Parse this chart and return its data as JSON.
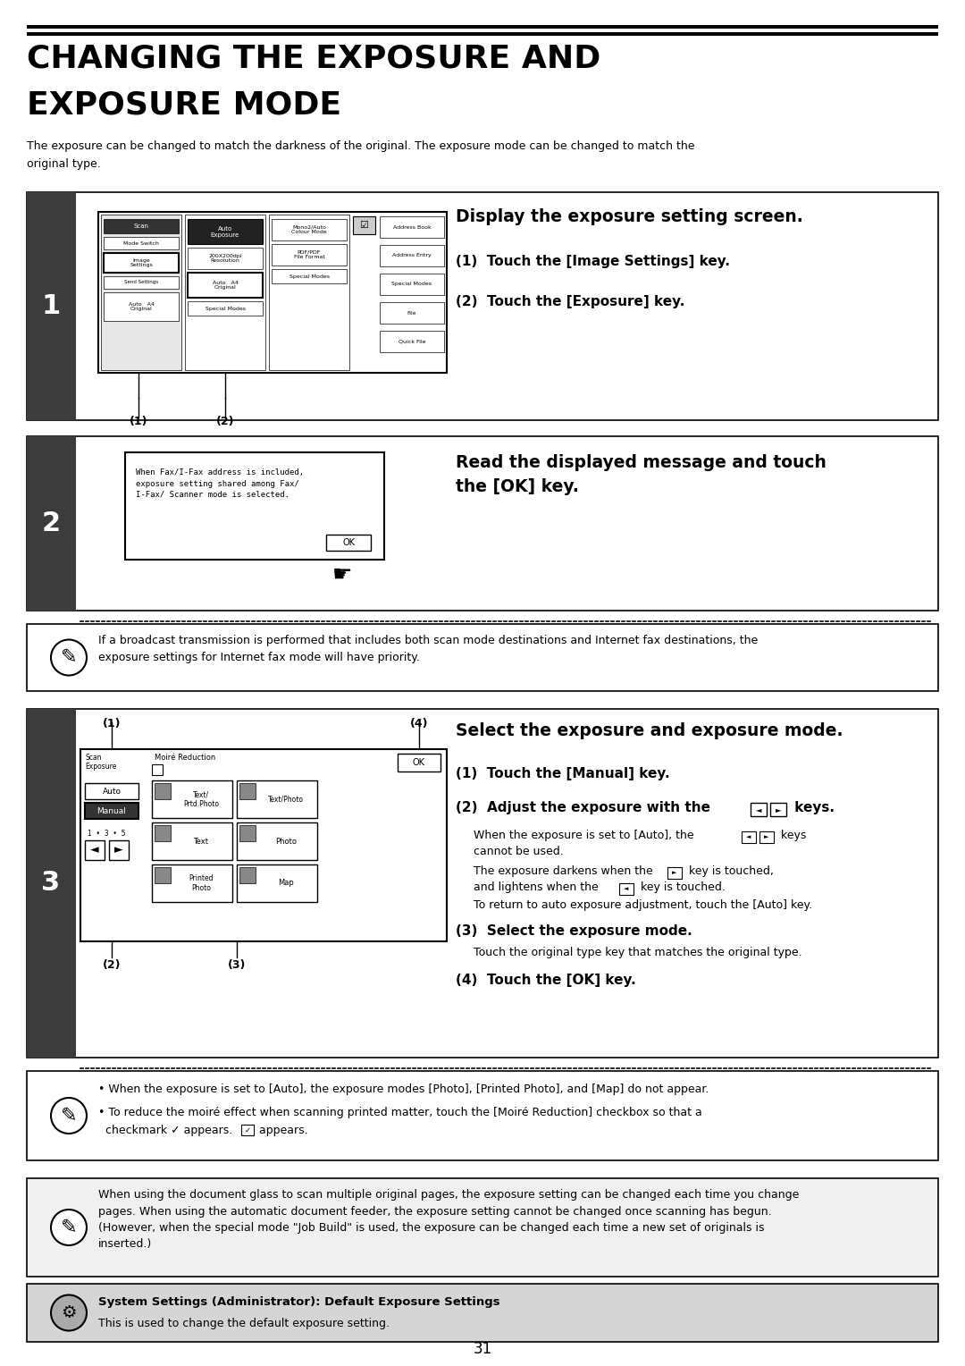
{
  "title_line1": "CHANGING THE EXPOSURE AND",
  "title_line2": "EXPOSURE MODE",
  "intro_text": "The exposure can be changed to match the darkness of the original. The exposure mode can be changed to match the\noriginal type.",
  "step1_heading": "Display the exposure setting screen.",
  "step1_item1": "(1)  Touch the [Image Settings] key.",
  "step1_item2": "(2)  Touch the [Exposure] key.",
  "step2_heading": "Read the displayed message and touch\nthe [OK] key.",
  "step2_note": "If a broadcast transmission is performed that includes both scan mode destinations and Internet fax destinations, the\nexposure settings for Internet fax mode will have priority.",
  "step3_heading": "Select the exposure and exposure mode.",
  "step3_item1": "(1)  Touch the [Manual] key.",
  "step3_item2_pre": "(2)  Adjust the exposure with the ",
  "step3_item2_post": " keys.",
  "step3_item3": "(3)  Select the exposure mode.",
  "step3_item4": "(4)  Touch the [OK] key.",
  "step3_sub2a_pre": "When the exposure is set to [Auto], the ",
  "step3_sub2a_post": " keys\ncannot be used.",
  "step3_sub2b_pre": "The exposure darkens when the ",
  "step3_sub2b_mid": " key is touched,\nand lightens when the ",
  "step3_sub2b_post": " key is touched.",
  "step3_sub2c": "To return to auto exposure adjustment, touch the [Auto] key.",
  "step3_sub3": "Touch the original type key that matches the original type.",
  "step3_note1": "• When the exposure is set to [Auto], the exposure modes [Photo], [Printed Photo], and [Map] do not appear.",
  "step3_note2a": "• To reduce the moiré effect when scanning printed matter, touch the [Moiré Reduction] checkbox so that a",
  "step3_note2b": "  checkmark ✓ appears.",
  "bottom_note": "When using the document glass to scan multiple original pages, the exposure setting can be changed each time you change\npages. When using the automatic document feeder, the exposure setting cannot be changed once scanning has begun.\n(However, when the special mode \"Job Build\" is used, the exposure can be changed each time a new set of originals is\ninserted.)",
  "system_settings_title": "System Settings (Administrator): Default Exposure Settings",
  "system_settings_text": "This is used to change the default exposure setting.",
  "page_number": "31",
  "bg_color": "#ffffff",
  "dark_bar_color": "#3c3c3c",
  "sys_bg_color": "#d5d5d5",
  "border_color": "#000000"
}
